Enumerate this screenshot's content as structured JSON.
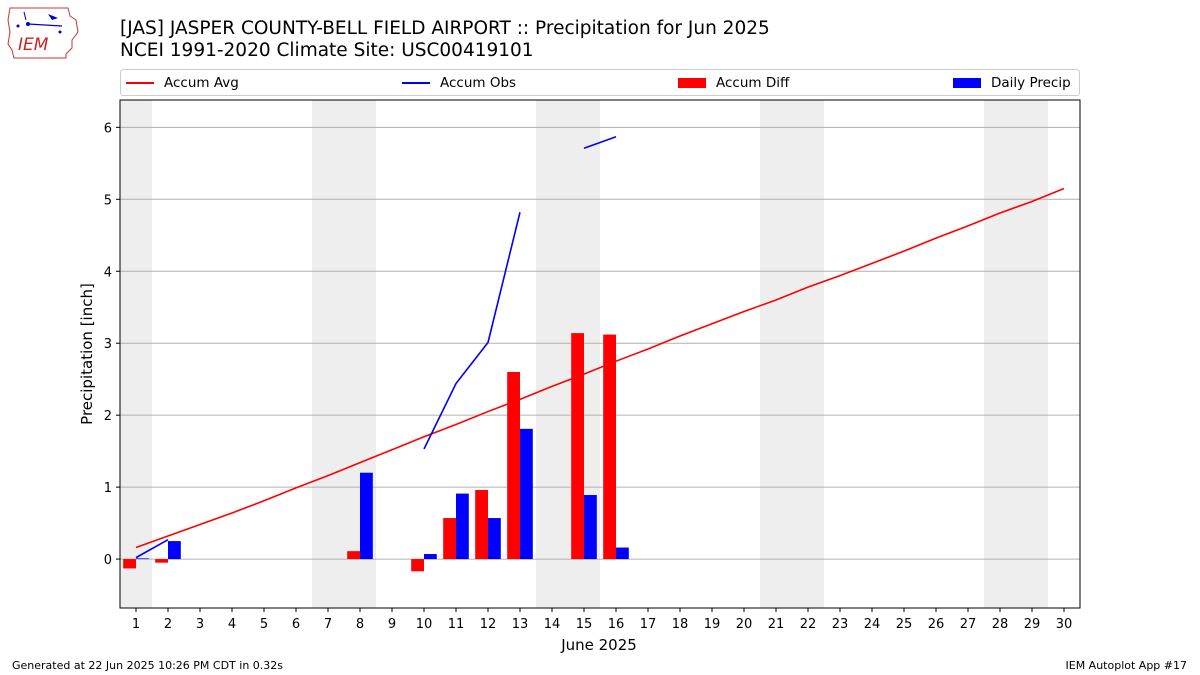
{
  "title_line1": "[JAS] JASPER COUNTY-BELL FIELD AIRPORT :: Precipitation for Jun 2025",
  "title_line2": "NCEI 1991-2020 Climate Site: USC00419101",
  "logo_text": "IEM",
  "footer_left": "Generated at 22 Jun 2025 10:26 PM CDT in 0.32s",
  "footer_right": "IEM Autoplot App #17",
  "colors": {
    "avg": "#ff0000",
    "obs": "#0000ff",
    "diff": "#ff0000",
    "daily": "#0000ff",
    "weekend": "#eeeeee",
    "grid": "#b0b0b0"
  },
  "chart_data": {
    "type": "bar",
    "xlabel": "June 2025",
    "ylabel": "Precipitation [inch]",
    "xlim": [
      0.5,
      30.5
    ],
    "ylim": [
      -0.68,
      6.38
    ],
    "yticks": [
      0,
      1,
      2,
      3,
      4,
      5,
      6
    ],
    "days": [
      1,
      2,
      3,
      4,
      5,
      6,
      7,
      8,
      9,
      10,
      11,
      12,
      13,
      14,
      15,
      16,
      17,
      18,
      19,
      20,
      21,
      22,
      23,
      24,
      25,
      26,
      27,
      28,
      29,
      30
    ],
    "weekend_days": [
      1,
      7,
      8,
      14,
      15,
      21,
      22,
      28,
      29
    ],
    "legend": [
      "Accum Avg",
      "Accum Obs",
      "Accum Diff",
      "Daily Precip"
    ],
    "series": [
      {
        "name": "Accum Avg",
        "kind": "line",
        "x": [
          1,
          2,
          3,
          4,
          5,
          6,
          7,
          8,
          9,
          10,
          11,
          12,
          13,
          14,
          15,
          16,
          17,
          18,
          19,
          20,
          21,
          22,
          23,
          24,
          25,
          26,
          27,
          28,
          29,
          30
        ],
        "values": [
          0.16,
          0.32,
          0.48,
          0.64,
          0.81,
          0.99,
          1.16,
          1.34,
          1.52,
          1.7,
          1.87,
          2.05,
          2.22,
          2.4,
          2.57,
          2.75,
          2.92,
          3.1,
          3.27,
          3.44,
          3.6,
          3.78,
          3.94,
          4.11,
          4.28,
          4.46,
          4.63,
          4.81,
          4.97,
          5.15
        ]
      },
      {
        "name": "Accum Obs",
        "kind": "line",
        "segments": [
          {
            "x": [
              1,
              2
            ],
            "values": [
              0.02,
              0.27
            ]
          },
          {
            "x": [
              10,
              11,
              12,
              13
            ],
            "values": [
              1.53,
              2.44,
              3.01,
              4.82
            ]
          },
          {
            "x": [
              15,
              16
            ],
            "values": [
              5.71,
              5.87
            ]
          }
        ]
      },
      {
        "name": "Accum Diff",
        "kind": "bar",
        "x": [
          1,
          2,
          8,
          10,
          11,
          12,
          13,
          15,
          16
        ],
        "values": [
          -0.13,
          -0.05,
          0.11,
          -0.17,
          0.57,
          0.96,
          2.6,
          3.14,
          3.12
        ]
      },
      {
        "name": "Daily Precip",
        "kind": "bar",
        "x": [
          1,
          2,
          8,
          10,
          11,
          12,
          13,
          15,
          16
        ],
        "values": [
          0.01,
          0.25,
          1.2,
          0.07,
          0.91,
          0.57,
          1.81,
          0.89,
          0.16
        ]
      }
    ]
  }
}
